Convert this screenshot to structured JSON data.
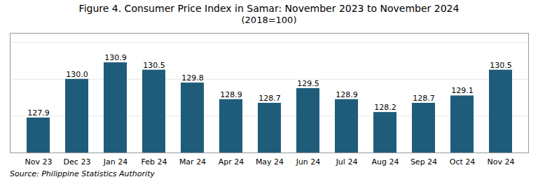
{
  "chart_data": {
    "type": "bar",
    "title": "Figure 4. Consumer Price Index in Samar: November 2023 to November 2024",
    "subtitle": "(2018=100)",
    "caption": "Source: Philippine Statistics Authority",
    "categories": [
      "Nov 23",
      "Dec 23",
      "Jan 24",
      "Feb 24",
      "Mar 24",
      "Apr 24",
      "May 24",
      "Jun 24",
      "Jul 24",
      "Aug 24",
      "Sep 24",
      "Oct 24",
      "Nov 24"
    ],
    "values": [
      127.9,
      130.0,
      130.9,
      130.5,
      129.8,
      128.9,
      128.7,
      129.5,
      128.9,
      128.2,
      128.7,
      129.1,
      130.5
    ],
    "value_labels": [
      "127.9",
      "130.0",
      "130.9",
      "130.5",
      "129.8",
      "128.9",
      "128.7",
      "129.5",
      "128.9",
      "128.2",
      "128.7",
      "129.1",
      "130.5"
    ],
    "color": "#1F5C7A",
    "ylim": [
      126.0,
      132.5
    ],
    "yticks": [
      126,
      128,
      130,
      132
    ],
    "grid": true,
    "data_labels": true,
    "tick_labels": "x"
  }
}
